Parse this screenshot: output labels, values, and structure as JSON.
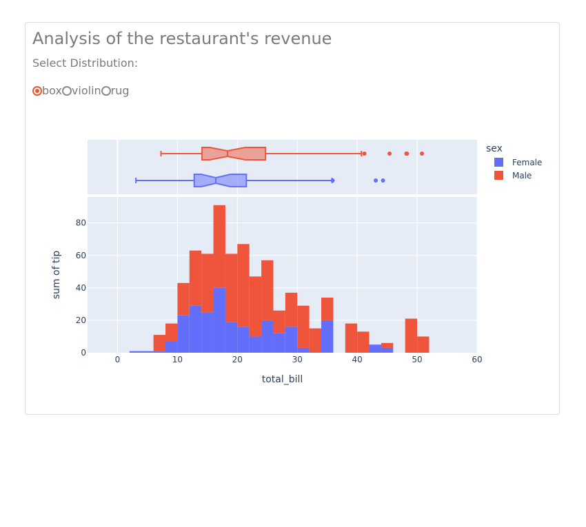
{
  "header": {
    "title": "Analysis of the restaurant's revenue",
    "subtitle": "Select Distribution:"
  },
  "distribution_options": [
    {
      "label": "box",
      "selected": true
    },
    {
      "label": "violin",
      "selected": false
    },
    {
      "label": "rug",
      "selected": false
    }
  ],
  "colors": {
    "Female": "#636efa",
    "Male": "#ef553b",
    "plot_bg": "#e5ecf6",
    "accent": "#e4592f"
  },
  "chart_data": {
    "type": "bar",
    "barmode": "stack",
    "xlabel": "total_bill",
    "ylabel": "sum of tip",
    "xlim": [
      -5,
      60
    ],
    "ylim": [
      0,
      96
    ],
    "x_ticks": [
      0,
      10,
      20,
      30,
      40,
      50,
      60
    ],
    "y_ticks": [
      0,
      20,
      40,
      60,
      80
    ],
    "bin_width": 2,
    "bin_starts": [
      2,
      4,
      6,
      8,
      10,
      12,
      14,
      16,
      18,
      20,
      22,
      24,
      26,
      28,
      30,
      32,
      34,
      36,
      38,
      40,
      42,
      44,
      46,
      48,
      50
    ],
    "legend": {
      "title": "sex",
      "placement": "right"
    },
    "series": [
      {
        "name": "Female",
        "values": [
          1,
          1,
          1,
          7,
          23,
          29,
          25,
          40,
          19,
          16,
          10,
          20,
          12,
          16,
          3,
          0,
          20,
          0,
          0,
          0,
          5,
          3,
          0,
          0,
          0
        ]
      },
      {
        "name": "Male",
        "values": [
          0,
          0,
          10,
          11,
          20,
          34,
          36,
          51,
          42,
          51,
          37,
          37,
          14,
          21,
          26,
          15,
          14,
          0,
          18,
          13,
          0,
          3,
          0,
          21,
          10
        ]
      }
    ],
    "marginal": {
      "type": "box",
      "x_ticks": [
        0,
        10,
        20,
        30,
        40,
        50
      ],
      "boxes": [
        {
          "name": "Male",
          "lower_fence": 7.25,
          "q1": 14.1,
          "median": 18.35,
          "q3": 24.7,
          "upper_fence": 40.7,
          "outliers": [
            41.2,
            45.4,
            48.2,
            48.3,
            50.8
          ]
        },
        {
          "name": "Female",
          "lower_fence": 3.07,
          "q1": 12.8,
          "median": 16.4,
          "q3": 21.5,
          "upper_fence": 35.8,
          "outliers": [
            35.9,
            43.1,
            44.3
          ]
        }
      ]
    }
  }
}
